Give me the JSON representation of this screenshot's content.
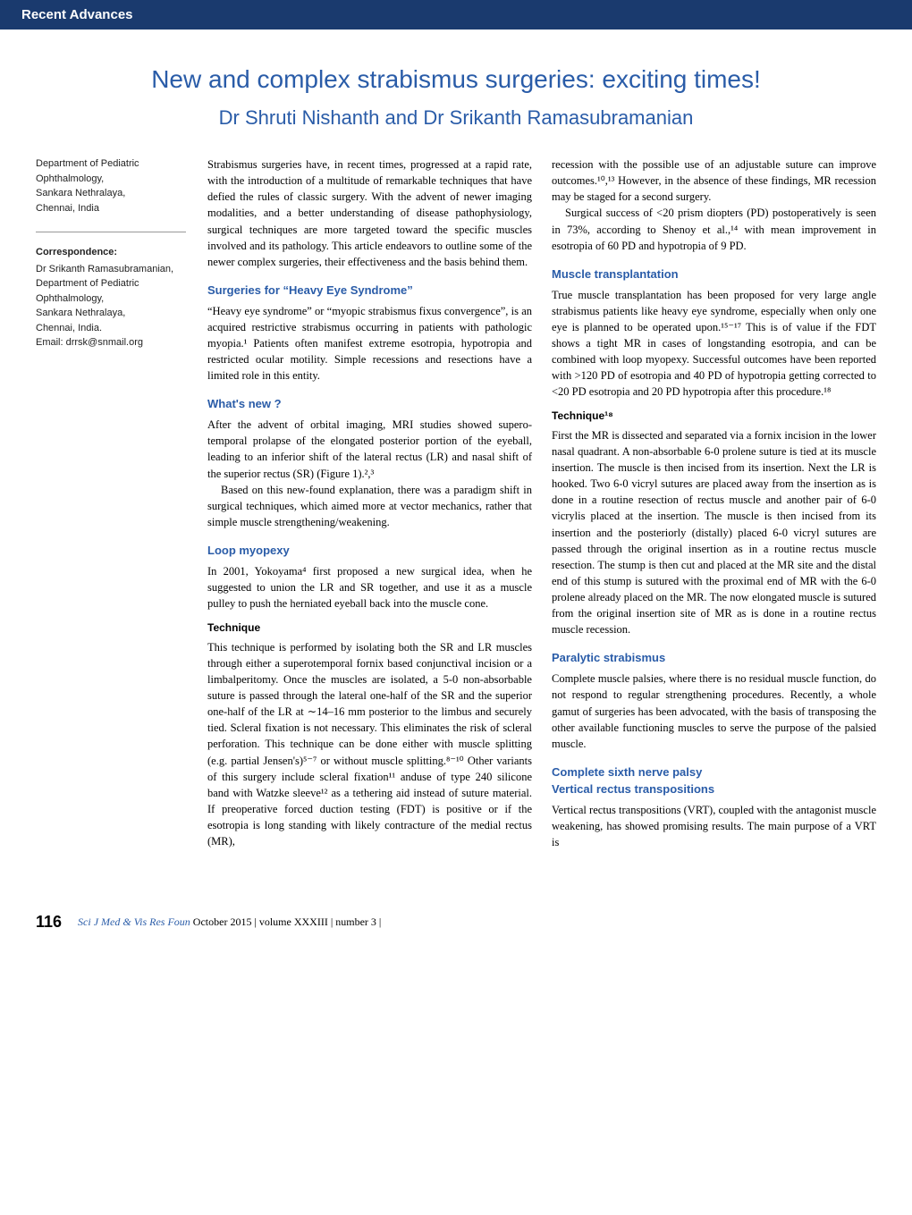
{
  "header_bar": "Recent Advances",
  "title": "New and complex strabismus surgeries: exciting times!",
  "authors": "Dr Shruti Nishanth and Dr Srikanth Ramasubramanian",
  "sidebar": {
    "affiliation": "Department of Pediatric Ophthalmology,\nSankara Nethralaya,\nChennai, India",
    "correspondence_label": "Correspondence:",
    "correspondence": "Dr Srikanth Ramasubramanian,\nDepartment of Pediatric Ophthalmology,\nSankara Nethralaya,\nChennai, India.\nEmail: drrsk@snmail.org"
  },
  "body": {
    "intro": "Strabismus surgeries have, in recent times, progressed at a rapid rate, with the introduction of a multitude of remarkable techniques that have defied the rules of classic surgery. With the advent of newer imaging modalities, and a better understanding of disease pathophysiology, surgical techniques are more targeted toward the specific muscles involved and its pathology. This article endeavors to outline some of the newer complex surgeries, their effectiveness and the basis behind them.",
    "h1": "Surgeries for “Heavy Eye Syndrome”",
    "p1": "“Heavy eye syndrome” or “myopic strabismus fixus convergence”, is an acquired restrictive strabismus occurring in patients with pathologic myopia.¹ Patients often manifest extreme esotropia, hypotropia and restricted ocular motility. Simple recessions and resections have a limited role in this entity.",
    "h2": "What's new ?",
    "p2a": "After the advent of orbital imaging, MRI studies showed supero-temporal prolapse of the elongated posterior portion of the eyeball, leading to an inferior shift of the lateral rectus (LR) and nasal shift of the superior rectus (SR) (Figure 1).²,³",
    "p2b": "Based on this new-found explanation, there was a paradigm shift in surgical techniques, which aimed more at vector mechanics, rather that simple muscle strengthening/weakening.",
    "h3": "Loop myopexy",
    "p3": "In 2001, Yokoyama⁴ first proposed a new surgical idea, when he suggested to union the LR and SR together, and use it as a muscle pulley to push the herniated eyeball back into the muscle cone.",
    "sub1": "Technique",
    "p4": "This technique is performed by isolating both the SR and LR muscles through either a superotemporal fornix based conjunctival incision or a limbalperitomy. Once the muscles are isolated, a 5-0 non-absorbable suture is passed through the lateral one-half of the SR and the superior one-half of the LR at ∼14–16 mm posterior to the limbus and securely tied. Scleral fixation is not necessary. This eliminates the risk of scleral perforation. This technique can be done either with muscle splitting (e.g. partial Jensen's)⁵⁻⁷ or without muscle splitting.⁸⁻¹⁰ Other variants of this surgery include scleral fixation¹¹ anduse of type 240 silicone band with Watzke sleeve¹² as a tethering aid instead of suture material. If preoperative forced duction testing (FDT) is positive or if the esotropia is long standing with likely contracture of the medial rectus (MR),",
    "p5a": "recession with the possible use of an adjustable suture can improve outcomes.¹⁰,¹³ However, in the absence of these findings, MR recession may be staged for a second surgery.",
    "p5b": "Surgical success of <20 prism diopters (PD) postoperatively is seen in 73%, according to Shenoy et al.,¹⁴ with mean improvement in esotropia of 60 PD and hypotropia of 9 PD.",
    "h4": "Muscle transplantation",
    "p6": "True muscle transplantation has been proposed for very large angle strabismus patients like heavy eye syndrome, especially when only one eye is planned to be operated upon.¹⁵⁻¹⁷ This is of value if the FDT shows a tight MR in cases of longstanding esotropia, and can be combined with loop myopexy. Successful outcomes have been reported with >120 PD of esotropia and 40 PD of hypotropia getting corrected to <20 PD esotropia and 20 PD hypotropia after this procedure.¹⁸",
    "sub2": "Technique¹⁸",
    "p7": "First the MR is dissected and separated via a fornix incision in the lower nasal quadrant. A non-absorbable 6-0 prolene suture is tied at its muscle insertion. The muscle is then incised from its insertion. Next the LR is hooked. Two 6-0 vicryl sutures are placed away from the insertion as is done in a routine resection of rectus muscle and another pair of 6-0 vicrylis placed at the insertion. The muscle is then incised from its insertion and the posteriorly (distally) placed 6-0 vicryl sutures are passed through the original insertion as in a routine rectus muscle resection. The stump is then cut and placed at the MR site and the distal end of this stump is sutured with the proximal end of MR with the 6-0 prolene already placed on the MR. The now elongated muscle is sutured from the original insertion site of MR as is done in a routine rectus muscle recession.",
    "h5": "Paralytic strabismus",
    "p8": "Complete muscle palsies, where there is no residual muscle function, do not respond to regular strengthening procedures. Recently, a whole gamut of surgeries has been advocated, with the basis of transposing the other available functioning muscles to serve the purpose of the palsied muscle.",
    "h6a": "Complete sixth nerve palsy",
    "h6b": "Vertical rectus transpositions",
    "p9": "Vertical rectus transpositions (VRT), coupled with the antagonist muscle weakening, has showed promising results. The main purpose of a VRT is"
  },
  "footer": {
    "page_number": "116",
    "journal": "Sci J Med & Vis Res Foun",
    "rest": " October 2015 | volume XXXIII | number 3 |"
  },
  "colors": {
    "header_bg": "#1a3a6e",
    "accent": "#2a5ca8",
    "text": "#000000",
    "bg": "#ffffff"
  }
}
